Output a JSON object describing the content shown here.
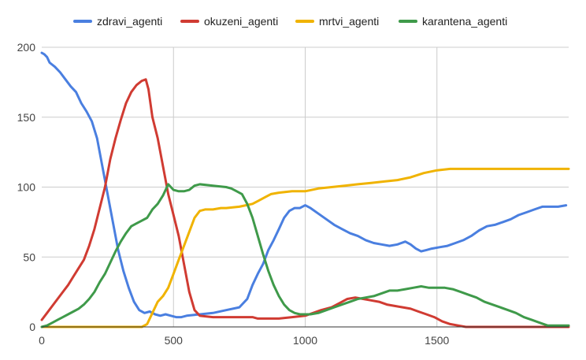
{
  "chart_data": {
    "type": "line",
    "title": "",
    "xlabel": "",
    "ylabel": "",
    "xlim": [
      0,
      2000
    ],
    "ylim": [
      0,
      200
    ],
    "x_ticks": [
      0,
      500,
      1000,
      1500
    ],
    "y_ticks": [
      0,
      50,
      100,
      150,
      200
    ],
    "grid": true,
    "legend": "top",
    "series": [
      {
        "name": "zdravi_agenti",
        "color": "#4a7fe0",
        "points": [
          [
            0,
            196
          ],
          [
            10,
            195
          ],
          [
            20,
            193
          ],
          [
            30,
            189
          ],
          [
            50,
            186
          ],
          [
            70,
            182
          ],
          [
            90,
            177
          ],
          [
            110,
            172
          ],
          [
            130,
            168
          ],
          [
            150,
            160
          ],
          [
            170,
            154
          ],
          [
            190,
            147
          ],
          [
            210,
            135
          ],
          [
            230,
            115
          ],
          [
            250,
            95
          ],
          [
            270,
            75
          ],
          [
            290,
            55
          ],
          [
            310,
            40
          ],
          [
            330,
            28
          ],
          [
            350,
            18
          ],
          [
            370,
            12
          ],
          [
            390,
            10
          ],
          [
            410,
            11
          ],
          [
            430,
            9
          ],
          [
            450,
            8
          ],
          [
            470,
            9
          ],
          [
            490,
            8
          ],
          [
            510,
            7
          ],
          [
            530,
            7
          ],
          [
            550,
            8
          ],
          [
            600,
            9
          ],
          [
            650,
            10
          ],
          [
            700,
            12
          ],
          [
            750,
            14
          ],
          [
            780,
            20
          ],
          [
            800,
            30
          ],
          [
            820,
            38
          ],
          [
            840,
            45
          ],
          [
            860,
            55
          ],
          [
            880,
            62
          ],
          [
            900,
            70
          ],
          [
            920,
            78
          ],
          [
            940,
            83
          ],
          [
            960,
            85
          ],
          [
            980,
            85
          ],
          [
            1000,
            87
          ],
          [
            1020,
            85
          ],
          [
            1050,
            81
          ],
          [
            1080,
            77
          ],
          [
            1110,
            73
          ],
          [
            1140,
            70
          ],
          [
            1170,
            67
          ],
          [
            1200,
            65
          ],
          [
            1230,
            62
          ],
          [
            1260,
            60
          ],
          [
            1290,
            59
          ],
          [
            1320,
            58
          ],
          [
            1350,
            59
          ],
          [
            1380,
            61
          ],
          [
            1400,
            59
          ],
          [
            1420,
            56
          ],
          [
            1440,
            54
          ],
          [
            1460,
            55
          ],
          [
            1480,
            56
          ],
          [
            1510,
            57
          ],
          [
            1540,
            58
          ],
          [
            1570,
            60
          ],
          [
            1600,
            62
          ],
          [
            1630,
            65
          ],
          [
            1660,
            69
          ],
          [
            1690,
            72
          ],
          [
            1720,
            73
          ],
          [
            1750,
            75
          ],
          [
            1780,
            77
          ],
          [
            1810,
            80
          ],
          [
            1840,
            82
          ],
          [
            1870,
            84
          ],
          [
            1900,
            86
          ],
          [
            1930,
            86
          ],
          [
            1960,
            86
          ],
          [
            1990,
            87
          ]
        ]
      },
      {
        "name": "okuzeni_agenti",
        "color": "#d03b32",
        "points": [
          [
            0,
            5
          ],
          [
            20,
            10
          ],
          [
            40,
            15
          ],
          [
            60,
            20
          ],
          [
            80,
            25
          ],
          [
            100,
            30
          ],
          [
            120,
            36
          ],
          [
            140,
            42
          ],
          [
            160,
            48
          ],
          [
            180,
            58
          ],
          [
            200,
            70
          ],
          [
            220,
            85
          ],
          [
            240,
            100
          ],
          [
            260,
            120
          ],
          [
            280,
            135
          ],
          [
            300,
            148
          ],
          [
            320,
            160
          ],
          [
            340,
            168
          ],
          [
            360,
            173
          ],
          [
            380,
            176
          ],
          [
            395,
            177
          ],
          [
            405,
            170
          ],
          [
            420,
            150
          ],
          [
            440,
            135
          ],
          [
            460,
            115
          ],
          [
            480,
            95
          ],
          [
            500,
            80
          ],
          [
            520,
            65
          ],
          [
            540,
            45
          ],
          [
            560,
            25
          ],
          [
            580,
            12
          ],
          [
            600,
            8
          ],
          [
            650,
            7
          ],
          [
            700,
            7
          ],
          [
            750,
            7
          ],
          [
            800,
            7
          ],
          [
            820,
            6
          ],
          [
            850,
            6
          ],
          [
            900,
            6
          ],
          [
            950,
            7
          ],
          [
            1000,
            8
          ],
          [
            1030,
            10
          ],
          [
            1060,
            12
          ],
          [
            1100,
            14
          ],
          [
            1130,
            17
          ],
          [
            1160,
            20
          ],
          [
            1190,
            21
          ],
          [
            1220,
            20
          ],
          [
            1250,
            19
          ],
          [
            1280,
            18
          ],
          [
            1310,
            16
          ],
          [
            1340,
            15
          ],
          [
            1370,
            14
          ],
          [
            1400,
            13
          ],
          [
            1430,
            11
          ],
          [
            1460,
            9
          ],
          [
            1490,
            7
          ],
          [
            1520,
            4
          ],
          [
            1550,
            2
          ],
          [
            1580,
            1
          ],
          [
            1610,
            0
          ],
          [
            1650,
            0
          ],
          [
            1700,
            0
          ],
          [
            1800,
            0
          ],
          [
            1900,
            0
          ],
          [
            2000,
            0
          ]
        ]
      },
      {
        "name": "mrtvi_agenti",
        "color": "#f0b300",
        "points": [
          [
            0,
            0
          ],
          [
            100,
            0
          ],
          [
            200,
            0
          ],
          [
            300,
            0
          ],
          [
            380,
            0
          ],
          [
            400,
            2
          ],
          [
            420,
            10
          ],
          [
            440,
            18
          ],
          [
            460,
            22
          ],
          [
            480,
            28
          ],
          [
            500,
            38
          ],
          [
            520,
            48
          ],
          [
            540,
            58
          ],
          [
            560,
            68
          ],
          [
            580,
            78
          ],
          [
            600,
            83
          ],
          [
            620,
            84
          ],
          [
            650,
            84
          ],
          [
            680,
            85
          ],
          [
            700,
            85
          ],
          [
            750,
            86
          ],
          [
            800,
            88
          ],
          [
            820,
            90
          ],
          [
            850,
            93
          ],
          [
            870,
            95
          ],
          [
            900,
            96
          ],
          [
            950,
            97
          ],
          [
            1000,
            97
          ],
          [
            1050,
            99
          ],
          [
            1100,
            100
          ],
          [
            1150,
            101
          ],
          [
            1200,
            102
          ],
          [
            1250,
            103
          ],
          [
            1300,
            104
          ],
          [
            1350,
            105
          ],
          [
            1400,
            107
          ],
          [
            1450,
            110
          ],
          [
            1500,
            112
          ],
          [
            1550,
            113
          ],
          [
            1600,
            113
          ],
          [
            1700,
            113
          ],
          [
            1800,
            113
          ],
          [
            1900,
            113
          ],
          [
            2000,
            113
          ]
        ]
      },
      {
        "name": "karantena_agenti",
        "color": "#3f9a4a",
        "points": [
          [
            0,
            0
          ],
          [
            20,
            1
          ],
          [
            40,
            3
          ],
          [
            60,
            5
          ],
          [
            80,
            7
          ],
          [
            100,
            9
          ],
          [
            120,
            11
          ],
          [
            140,
            13
          ],
          [
            160,
            16
          ],
          [
            180,
            20
          ],
          [
            200,
            25
          ],
          [
            220,
            32
          ],
          [
            240,
            38
          ],
          [
            260,
            46
          ],
          [
            280,
            54
          ],
          [
            300,
            61
          ],
          [
            320,
            67
          ],
          [
            340,
            72
          ],
          [
            360,
            74
          ],
          [
            380,
            76
          ],
          [
            400,
            78
          ],
          [
            420,
            84
          ],
          [
            440,
            88
          ],
          [
            460,
            94
          ],
          [
            480,
            102
          ],
          [
            500,
            98
          ],
          [
            520,
            97
          ],
          [
            540,
            97
          ],
          [
            560,
            98
          ],
          [
            580,
            101
          ],
          [
            600,
            102
          ],
          [
            650,
            101
          ],
          [
            700,
            100
          ],
          [
            720,
            99
          ],
          [
            740,
            97
          ],
          [
            760,
            95
          ],
          [
            780,
            88
          ],
          [
            800,
            78
          ],
          [
            820,
            65
          ],
          [
            840,
            52
          ],
          [
            860,
            40
          ],
          [
            880,
            30
          ],
          [
            900,
            22
          ],
          [
            920,
            16
          ],
          [
            940,
            12
          ],
          [
            960,
            10
          ],
          [
            980,
            9
          ],
          [
            1000,
            9
          ],
          [
            1020,
            9
          ],
          [
            1050,
            10
          ],
          [
            1080,
            12
          ],
          [
            1110,
            14
          ],
          [
            1140,
            16
          ],
          [
            1170,
            18
          ],
          [
            1200,
            20
          ],
          [
            1230,
            21
          ],
          [
            1260,
            22
          ],
          [
            1290,
            24
          ],
          [
            1320,
            26
          ],
          [
            1350,
            26
          ],
          [
            1380,
            27
          ],
          [
            1410,
            28
          ],
          [
            1440,
            29
          ],
          [
            1470,
            28
          ],
          [
            1500,
            28
          ],
          [
            1530,
            28
          ],
          [
            1560,
            27
          ],
          [
            1590,
            25
          ],
          [
            1620,
            23
          ],
          [
            1650,
            21
          ],
          [
            1680,
            18
          ],
          [
            1710,
            16
          ],
          [
            1740,
            14
          ],
          [
            1770,
            12
          ],
          [
            1800,
            10
          ],
          [
            1830,
            7
          ],
          [
            1860,
            5
          ],
          [
            1890,
            3
          ],
          [
            1920,
            1
          ],
          [
            1950,
            1
          ],
          [
            1980,
            1
          ],
          [
            2000,
            1
          ]
        ]
      }
    ]
  }
}
